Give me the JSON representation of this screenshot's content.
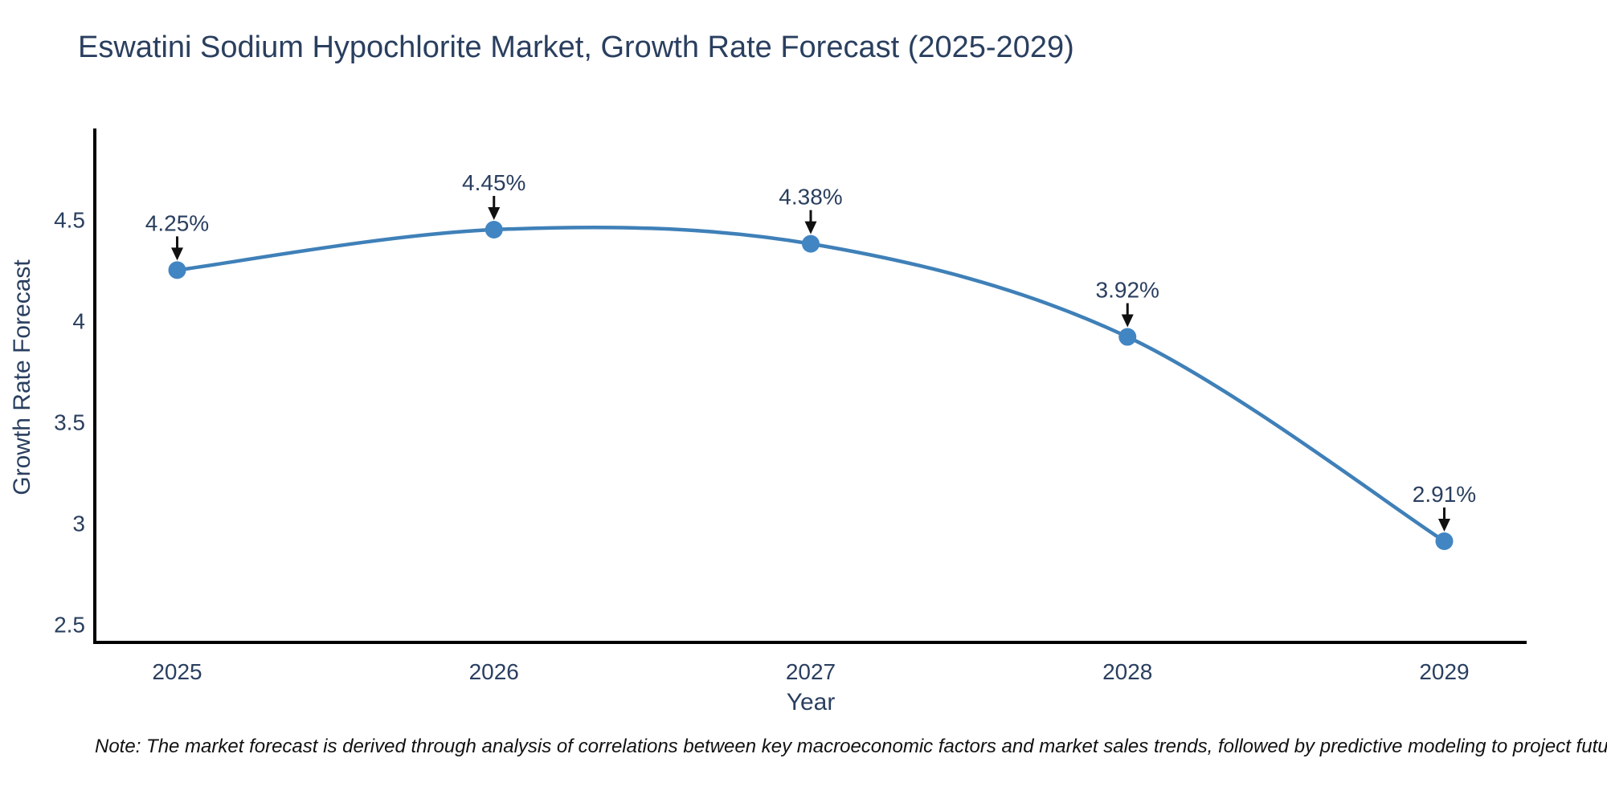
{
  "note": "Note: The market forecast is derived through analysis of correlations between key macroeconomic factors and market sales trends, followed by predictive modeling to project future sales.",
  "chart_data": {
    "type": "line",
    "title": "Eswatini Sodium Hypochlorite Market, Growth Rate Forecast (2025-2029)",
    "xlabel": "Year",
    "ylabel": "Growth Rate Forecast",
    "x": [
      2025,
      2026,
      2027,
      2028,
      2029
    ],
    "values": [
      4.25,
      4.45,
      4.38,
      3.92,
      2.91
    ],
    "point_labels": [
      "4.25%",
      "4.45%",
      "4.38%",
      "3.92%",
      "2.91%"
    ],
    "xticklabels": [
      "2025",
      "2026",
      "2027",
      "2028",
      "2029"
    ],
    "yticks": [
      2.5,
      3,
      3.5,
      4,
      4.5
    ],
    "yticklabels": [
      "2.5",
      "3",
      "3.5",
      "4",
      "4.5"
    ],
    "xlim": [
      2024.74,
      2029.26
    ],
    "ylim": [
      2.41,
      4.95
    ],
    "grid": false,
    "line_shape": "spline",
    "legend": "none",
    "colors": {
      "line": "#3f80b8",
      "marker": "#4285c3",
      "arrow": "#111111",
      "label_text": "#2a3f5f",
      "axis": "#000000"
    }
  }
}
